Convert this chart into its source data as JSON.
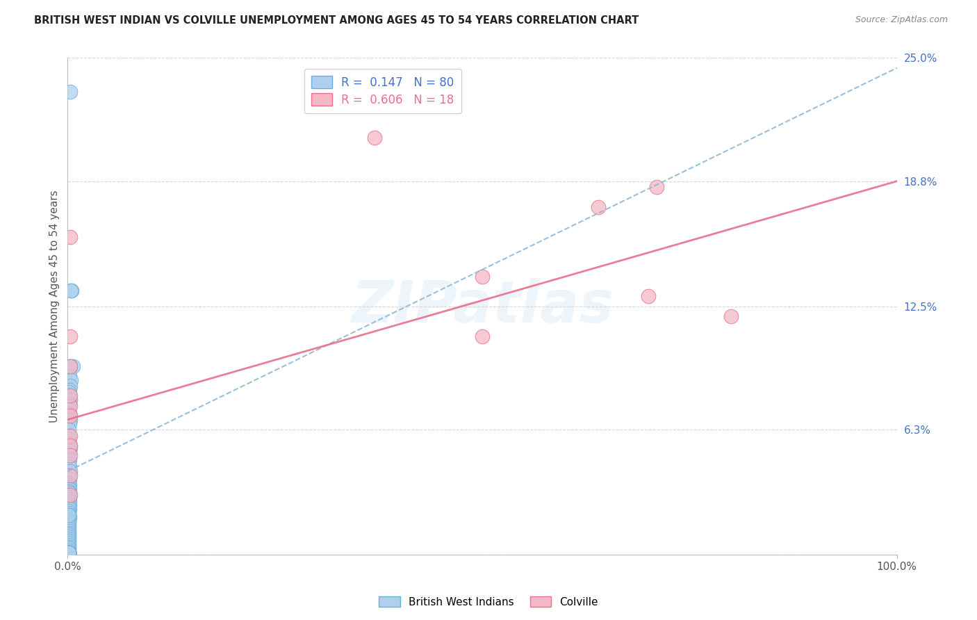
{
  "title": "BRITISH WEST INDIAN VS COLVILLE UNEMPLOYMENT AMONG AGES 45 TO 54 YEARS CORRELATION CHART",
  "source": "Source: ZipAtlas.com",
  "ylabel": "Unemployment Among Ages 45 to 54 years",
  "xlim": [
    0,
    1.0
  ],
  "ylim": [
    0,
    0.25
  ],
  "ytick_positions": [
    0.0,
    0.063,
    0.125,
    0.188,
    0.25
  ],
  "ytick_labels": [
    "",
    "6.3%",
    "12.5%",
    "18.8%",
    "25.0%"
  ],
  "watermark": "ZIPatlas",
  "background_color": "#ffffff",
  "grid_color": "#d8d8d8",
  "bwi_color": "#aed0ee",
  "bwi_edge_color": "#6aafd6",
  "colville_color": "#f5b8c8",
  "colville_edge_color": "#e8708a",
  "bwi_trendline_color": "#90b8d8",
  "colville_trendline_color": "#e8708a",
  "bwi_points_x": [
    0.003,
    0.005,
    0.004,
    0.006,
    0.003,
    0.002,
    0.004,
    0.003,
    0.002,
    0.001,
    0.002,
    0.003,
    0.002,
    0.001,
    0.002,
    0.003,
    0.002,
    0.001,
    0.002,
    0.001,
    0.002,
    0.003,
    0.002,
    0.001,
    0.002,
    0.001,
    0.002,
    0.003,
    0.001,
    0.002,
    0.001,
    0.002,
    0.001,
    0.002,
    0.001,
    0.002,
    0.001,
    0.002,
    0.001,
    0.002,
    0.001,
    0.002,
    0.001,
    0.002,
    0.001,
    0.001,
    0.001,
    0.002,
    0.001,
    0.001,
    0.001,
    0.001,
    0.001,
    0.001,
    0.001,
    0.001,
    0.001,
    0.001,
    0.001,
    0.001,
    0.001,
    0.001,
    0.001,
    0.001,
    0.001,
    0.001,
    0.001,
    0.001,
    0.001,
    0.001,
    0.001,
    0.001,
    0.001,
    0.001,
    0.001,
    0.001,
    0.001,
    0.001,
    0.001,
    0.001
  ],
  "bwi_points_y": [
    0.233,
    0.133,
    0.133,
    0.095,
    0.095,
    0.09,
    0.088,
    0.085,
    0.083,
    0.082,
    0.08,
    0.078,
    0.076,
    0.073,
    0.071,
    0.068,
    0.066,
    0.063,
    0.06,
    0.058,
    0.056,
    0.054,
    0.052,
    0.05,
    0.048,
    0.046,
    0.044,
    0.042,
    0.04,
    0.038,
    0.036,
    0.035,
    0.034,
    0.033,
    0.032,
    0.031,
    0.03,
    0.029,
    0.028,
    0.027,
    0.026,
    0.025,
    0.024,
    0.023,
    0.022,
    0.021,
    0.02,
    0.019,
    0.018,
    0.017,
    0.016,
    0.015,
    0.014,
    0.013,
    0.012,
    0.011,
    0.01,
    0.009,
    0.008,
    0.007,
    0.006,
    0.005,
    0.004,
    0.003,
    0.002,
    0.001,
    0.001,
    0.001,
    0.001,
    0.001,
    0.001,
    0.001,
    0.001,
    0.001,
    0.001,
    0.001,
    0.001,
    0.001,
    0.001,
    0.02
  ],
  "colville_points_x": [
    0.003,
    0.003,
    0.003,
    0.003,
    0.003,
    0.37,
    0.5,
    0.5,
    0.64,
    0.7,
    0.71,
    0.8,
    0.003,
    0.003,
    0.003,
    0.003,
    0.003,
    0.003
  ],
  "colville_points_y": [
    0.16,
    0.11,
    0.095,
    0.075,
    0.06,
    0.21,
    0.14,
    0.11,
    0.175,
    0.13,
    0.185,
    0.12,
    0.055,
    0.04,
    0.03,
    0.07,
    0.08,
    0.05
  ],
  "bwi_trend_x": [
    0.0,
    1.0
  ],
  "bwi_trend_y": [
    0.042,
    0.245
  ],
  "colville_trend_x": [
    0.0,
    1.0
  ],
  "colville_trend_y": [
    0.068,
    0.188
  ]
}
